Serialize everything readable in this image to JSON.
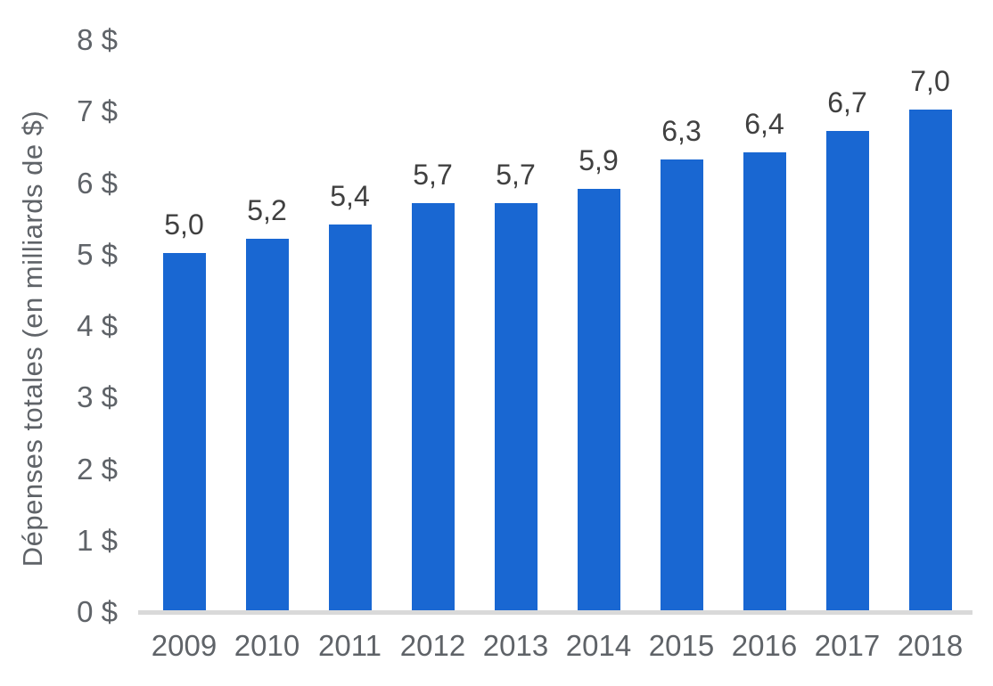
{
  "chart_data": {
    "type": "bar",
    "categories": [
      "2009",
      "2010",
      "2011",
      "2012",
      "2013",
      "2014",
      "2015",
      "2016",
      "2017",
      "2018"
    ],
    "values": [
      5.0,
      5.2,
      5.4,
      5.7,
      5.7,
      5.9,
      6.3,
      6.4,
      6.7,
      7.0
    ],
    "bar_labels": [
      "5,0",
      "5,2",
      "5,4",
      "5,7",
      "5,7",
      "5,9",
      "6,3",
      "6,4",
      "6,7",
      "7,0"
    ],
    "title": "",
    "xlabel": "",
    "ylabel": "Dépenses totales (en milliards de $)",
    "ylim": [
      0,
      8
    ],
    "ytick_step": 1,
    "ytick_labels": [
      "0 $",
      "1 $",
      "2 $",
      "3 $",
      "4 $",
      "5 $",
      "6 $",
      "7 $",
      "8 $"
    ],
    "grid": false,
    "legend_position": "none",
    "colors": {
      "bar": "#1967d2",
      "axis_text": "#5f6368",
      "data_label": "#404040",
      "baseline": "#d9d9d9"
    }
  }
}
